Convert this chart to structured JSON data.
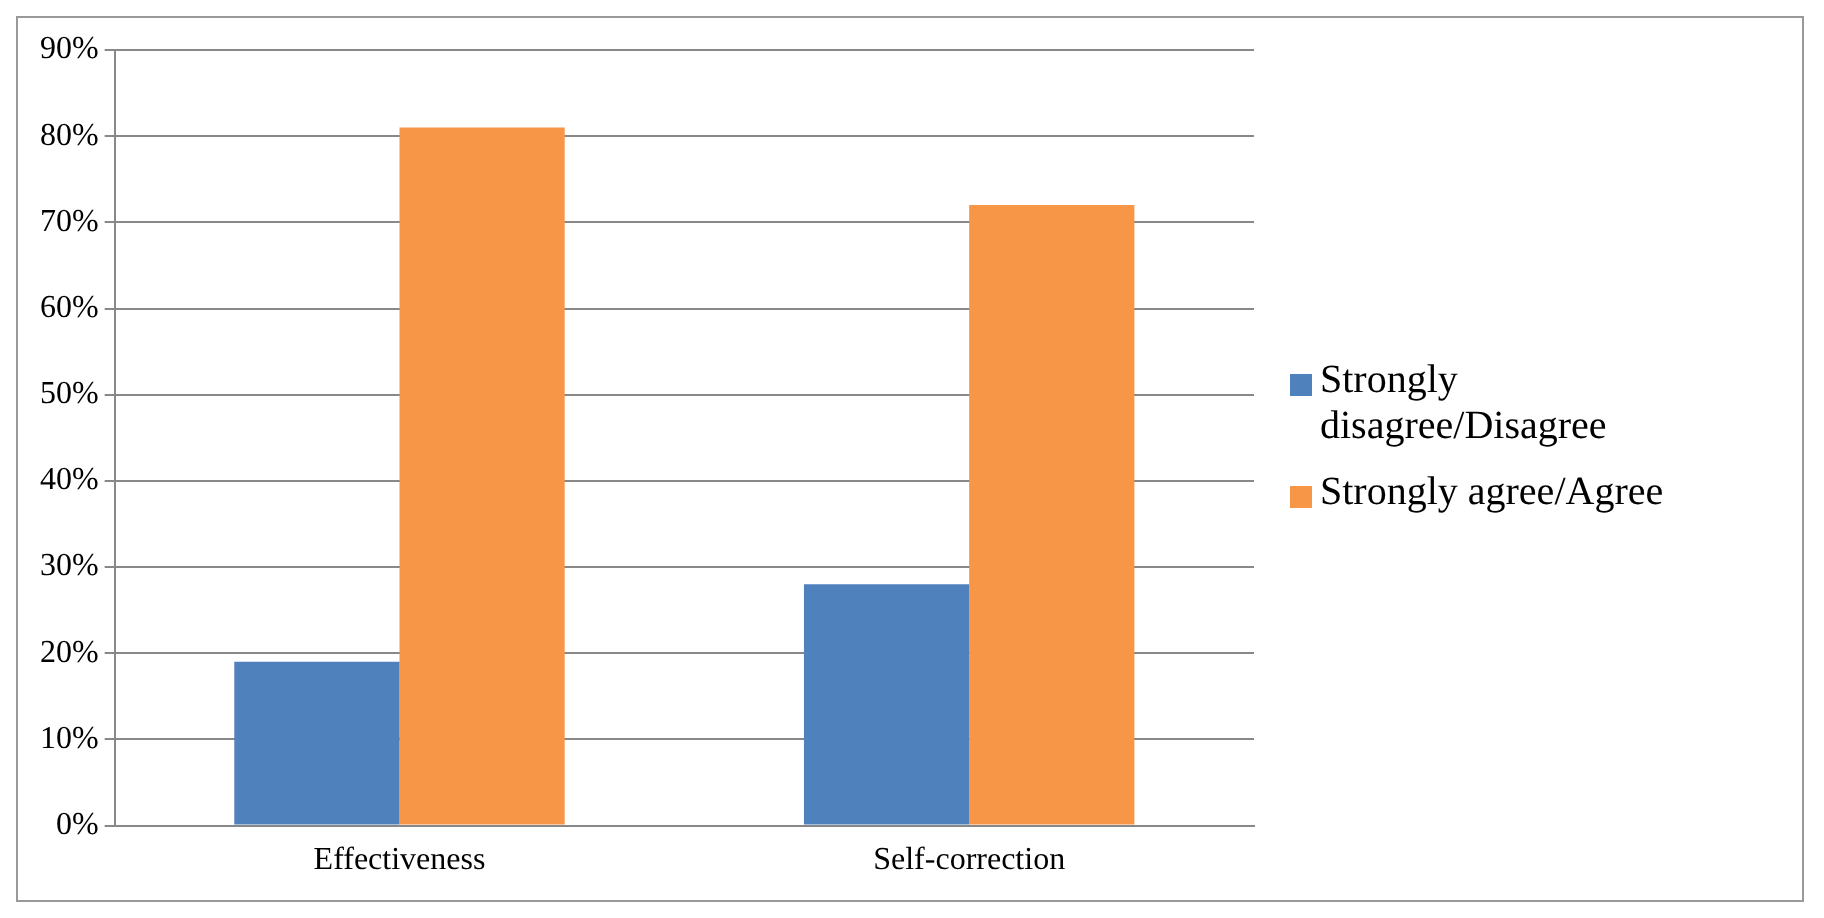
{
  "chart_data": {
    "type": "bar",
    "categories": [
      "Effectiveness",
      "Self-correction"
    ],
    "series": [
      {
        "name": "Strongly disagree/Disagree",
        "color": "#4f81bd",
        "values": [
          19,
          28
        ]
      },
      {
        "name": "Strongly agree/Agree",
        "color": "#f79646",
        "values": [
          81,
          72
        ]
      }
    ],
    "ylim": [
      0,
      90
    ],
    "yticks": [
      {
        "value": 0,
        "label": "0%"
      },
      {
        "value": 10,
        "label": "10%"
      },
      {
        "value": 20,
        "label": "20%"
      },
      {
        "value": 30,
        "label": "30%"
      },
      {
        "value": 40,
        "label": "40%"
      },
      {
        "value": 50,
        "label": "50%"
      },
      {
        "value": 60,
        "label": "60%"
      },
      {
        "value": 70,
        "label": "70%"
      },
      {
        "value": 80,
        "label": "80%"
      },
      {
        "value": 90,
        "label": "90%"
      }
    ],
    "grid": "y",
    "legend": "right"
  }
}
